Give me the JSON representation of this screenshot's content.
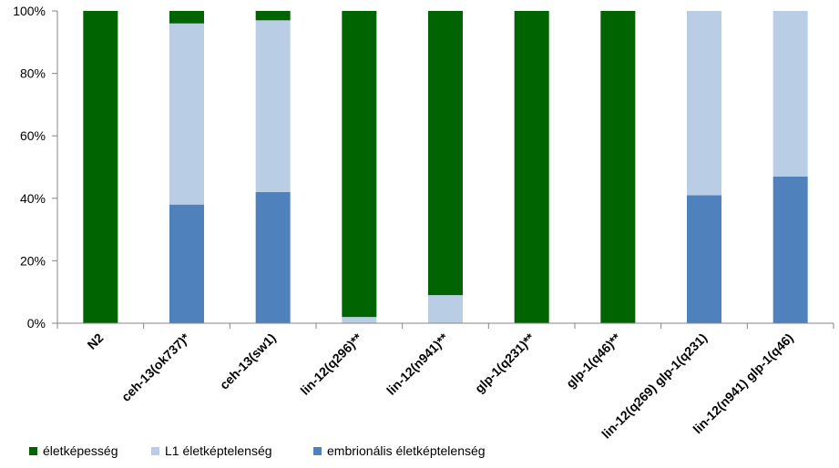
{
  "chart_data": {
    "type": "bar",
    "stacked": true,
    "percent": true,
    "categories": [
      "N2",
      "ceh-13(ok737)*",
      "ceh-13(sw1)",
      "lin-12(q296)**",
      "lin-12(n941)**",
      "glp-1(q231)**",
      "glp-1(q46)**",
      "lin-12(q269) glp-1(q231)",
      "lin-12(n941) glp-1(q46)"
    ],
    "series": [
      {
        "name": "embrionális életképtelenség",
        "color": "#4f81bd",
        "values": [
          0,
          38,
          42,
          0,
          0,
          0,
          0,
          41,
          47
        ]
      },
      {
        "name": "L1 életképtelenség",
        "color": "#b9cde5",
        "values": [
          0,
          58,
          55,
          2,
          9,
          0,
          0,
          59,
          53
        ]
      },
      {
        "name": "életképesség",
        "color": "#006400",
        "values": [
          100,
          4,
          3,
          98,
          91,
          100,
          100,
          0,
          0
        ]
      }
    ],
    "legend_order": [
      2,
      1,
      0
    ],
    "legend_position": "bottom-left",
    "yticks": [
      "0%",
      "20%",
      "40%",
      "60%",
      "80%",
      "100%"
    ],
    "ylim": [
      0,
      100
    ],
    "grid": false
  }
}
